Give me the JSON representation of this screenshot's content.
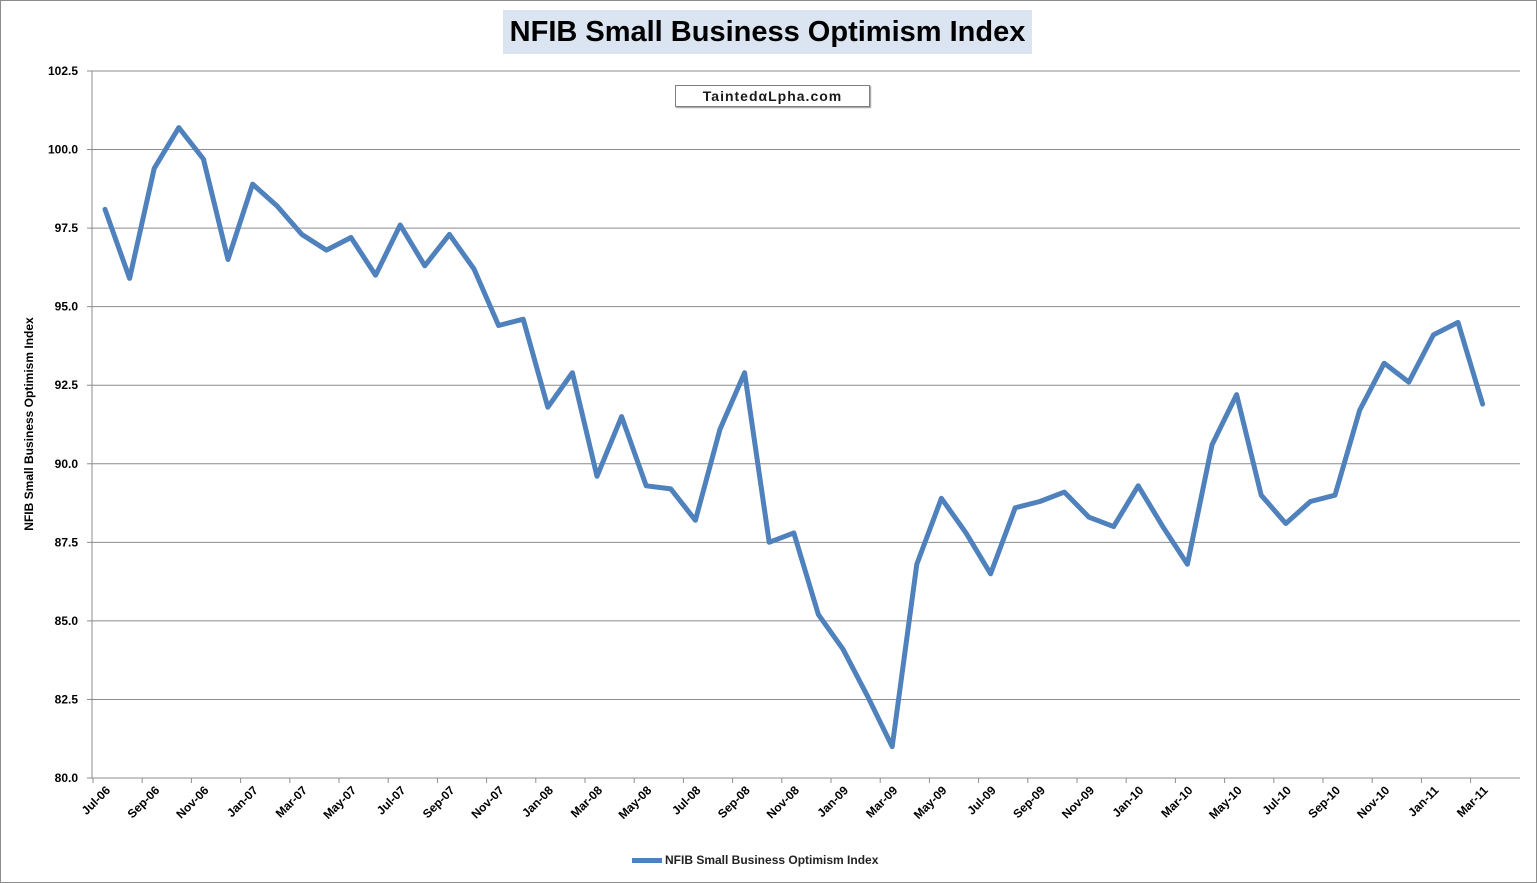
{
  "watermark": "TaintedαLpha.com",
  "chart_data": {
    "type": "line",
    "title": "NFIB Small Business Optimism Index",
    "ylabel": "NFIB Small Business Optimism Index",
    "xlabel": "",
    "ylim": [
      80.0,
      102.5
    ],
    "yticks": [
      "80.0",
      "82.5",
      "85.0",
      "87.5",
      "90.0",
      "92.5",
      "95.0",
      "97.5",
      "100.0",
      "102.5"
    ],
    "x_tick_labels": [
      "Jul-06",
      "Sep-06",
      "Nov-06",
      "Jan-07",
      "Mar-07",
      "May-07",
      "Jul-07",
      "Sep-07",
      "Nov-07",
      "Jan-08",
      "Mar-08",
      "May-08",
      "Jul-08",
      "Sep-08",
      "Nov-08",
      "Jan-09",
      "Mar-09",
      "May-09",
      "Jul-09",
      "Sep-09",
      "Nov-09",
      "Jan-10",
      "Mar-10",
      "May-10",
      "Jul-10",
      "Sep-10",
      "Nov-10",
      "Jan-11",
      "Mar-11"
    ],
    "grid": true,
    "legend_position": "bottom",
    "color": "#4f81bd",
    "series": [
      {
        "name": "NFIB Small Business Optimism Index",
        "x": [
          "Jul-06",
          "Aug-06",
          "Sep-06",
          "Oct-06",
          "Nov-06",
          "Dec-06",
          "Jan-07",
          "Feb-07",
          "Mar-07",
          "Apr-07",
          "May-07",
          "Jun-07",
          "Jul-07",
          "Aug-07",
          "Sep-07",
          "Oct-07",
          "Nov-07",
          "Dec-07",
          "Jan-08",
          "Feb-08",
          "Mar-08",
          "Apr-08",
          "May-08",
          "Jun-08",
          "Jul-08",
          "Aug-08",
          "Sep-08",
          "Oct-08",
          "Nov-08",
          "Dec-08",
          "Jan-09",
          "Feb-09",
          "Mar-09",
          "Apr-09",
          "May-09",
          "Jun-09",
          "Jul-09",
          "Aug-09",
          "Sep-09",
          "Oct-09",
          "Nov-09",
          "Dec-09",
          "Jan-10",
          "Feb-10",
          "Mar-10",
          "Apr-10",
          "May-10",
          "Jun-10",
          "Jul-10",
          "Aug-10",
          "Sep-10",
          "Oct-10",
          "Nov-10",
          "Dec-10",
          "Jan-11",
          "Feb-11",
          "Mar-11"
        ],
        "values": [
          98.1,
          95.9,
          99.4,
          100.7,
          99.7,
          96.5,
          98.9,
          98.2,
          97.3,
          96.8,
          97.2,
          96.0,
          97.6,
          96.3,
          97.3,
          96.2,
          94.4,
          94.6,
          91.8,
          92.9,
          89.6,
          91.5,
          89.3,
          89.2,
          88.2,
          91.1,
          92.9,
          87.5,
          87.8,
          85.2,
          84.1,
          82.6,
          81.0,
          86.8,
          88.9,
          87.8,
          86.5,
          88.6,
          88.8,
          89.1,
          88.3,
          88.0,
          89.3,
          88.0,
          86.8,
          90.6,
          92.2,
          89.0,
          88.1,
          88.8,
          89.0,
          91.7,
          93.2,
          92.6,
          94.1,
          94.5,
          91.9
        ]
      }
    ]
  }
}
